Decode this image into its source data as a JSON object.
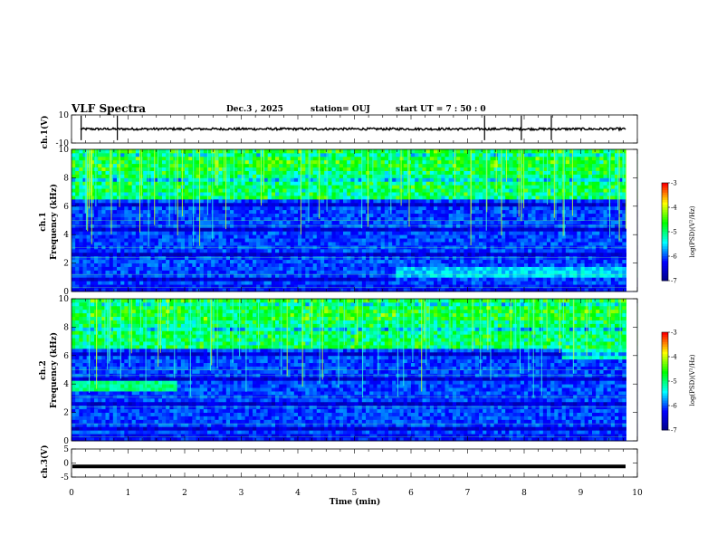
{
  "header": {
    "title": "VLF Spectra",
    "date": "Dec.3  , 2025",
    "station": "station= OUJ",
    "start": "start  UT =   7 : 50 : 0"
  },
  "chart_data": [
    {
      "type": "line",
      "name": "ch1-waveform",
      "ylabel": "ch.1(V)",
      "ylim": [
        -10,
        10
      ],
      "yticks": [
        "10",
        "-10"
      ],
      "baseline": 0,
      "spikes_min": [
        0.17,
        0.81,
        7.3,
        7.95,
        8.48
      ]
    },
    {
      "type": "heatmap",
      "name": "ch1-spectrogram",
      "ylabel_line1": "ch.1",
      "ylabel_line2": "Frequency  (kHz)",
      "ylim": [
        0,
        10
      ],
      "yticks": [
        "0",
        "2",
        "4",
        "6",
        "8",
        "10"
      ],
      "colorbar": {
        "label": "log(PSD)(V²/Hz)",
        "ticks": [
          "-3",
          "-4",
          "-5",
          "-6",
          "-7"
        ],
        "range": [
          -7,
          -3
        ]
      }
    },
    {
      "type": "heatmap",
      "name": "ch2-spectrogram",
      "ylabel_line1": "ch.2",
      "ylabel_line2": "Frequency  (kHz)",
      "ylim": [
        0,
        10
      ],
      "yticks": [
        "0",
        "2",
        "4",
        "6",
        "8",
        "10"
      ],
      "colorbar": {
        "label": "log(PSD)(V²/Hz)",
        "ticks": [
          "-3",
          "-4",
          "-5",
          "-6",
          "-7"
        ],
        "range": [
          -7,
          -3
        ]
      }
    },
    {
      "type": "line",
      "name": "ch3-waveform",
      "ylabel": "ch.3(V)",
      "ylim": [
        -5,
        5
      ],
      "yticks": [
        "5",
        "0",
        "-5"
      ],
      "baseline": -1.2
    }
  ],
  "xaxis": {
    "label": "Time  (min)",
    "range": [
      0,
      10
    ],
    "ticks": [
      "0",
      "1",
      "2",
      "3",
      "4",
      "5",
      "6",
      "7",
      "8",
      "9",
      "10"
    ]
  },
  "colors": {
    "low": "#000080",
    "mid": "#00ffff",
    "green": "#00ff00",
    "high": "#ff0000"
  }
}
